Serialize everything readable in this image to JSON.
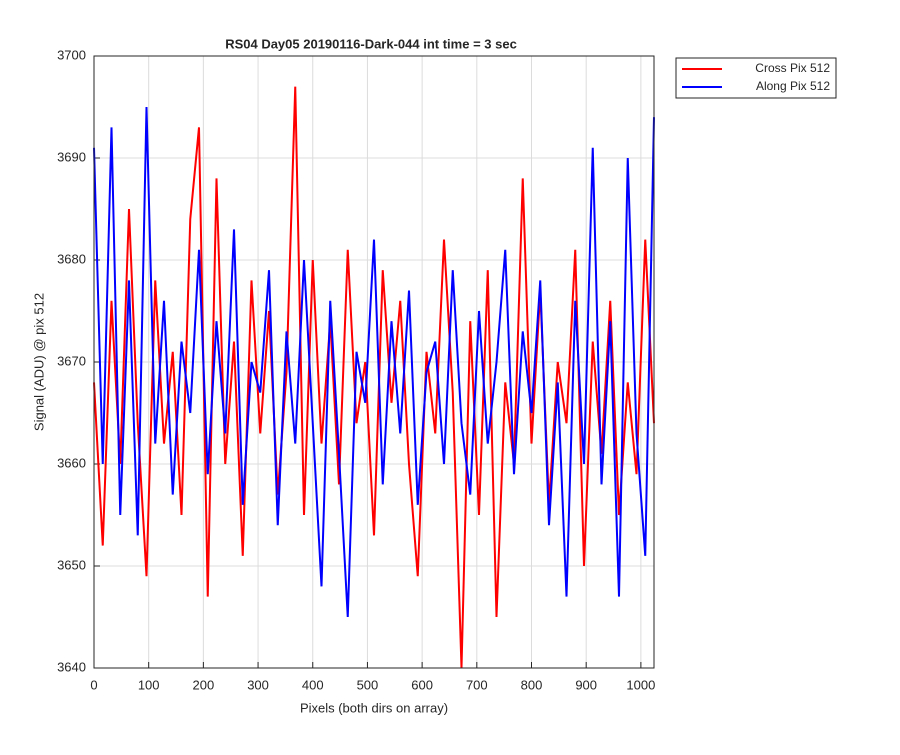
{
  "chart_data": {
    "type": "line",
    "title": "RS04 Day05 20190116-Dark-044 int time = 3 sec",
    "x_label": "Pixels (both dirs on array)",
    "y_label": "Signal (ADU) @ pix 512",
    "x": [
      0,
      16,
      32,
      48,
      64,
      80,
      96,
      112,
      128,
      144,
      160,
      176,
      192,
      208,
      224,
      240,
      256,
      272,
      288,
      304,
      320,
      336,
      352,
      368,
      384,
      400,
      416,
      432,
      448,
      464,
      480,
      496,
      512,
      528,
      544,
      560,
      576,
      592,
      608,
      624,
      640,
      656,
      672,
      688,
      704,
      720,
      736,
      752,
      768,
      784,
      800,
      816,
      832,
      848,
      864,
      880,
      896,
      912,
      928,
      944,
      960,
      976,
      992,
      1008,
      1024
    ],
    "series": [
      {
        "name": "Cross Pix 512",
        "color": "#ff0000",
        "values": [
          3668,
          3652,
          3676,
          3660,
          3685,
          3664,
          3649,
          3678,
          3662,
          3671,
          3655,
          3684,
          3693,
          3647,
          3688,
          3660,
          3672,
          3651,
          3678,
          3663,
          3675,
          3657,
          3669,
          3697,
          3655,
          3680,
          3662,
          3674,
          3658,
          3681,
          3664,
          3670,
          3653,
          3679,
          3666,
          3676,
          3660,
          3649,
          3671,
          3663,
          3682,
          3667,
          3640,
          3674,
          3655,
          3679,
          3645,
          3668,
          3660,
          3688,
          3662,
          3677,
          3656,
          3670,
          3664,
          3681,
          3650,
          3672,
          3661,
          3676,
          3655,
          3668,
          3659,
          3682,
          3664
        ]
      },
      {
        "name": "Along Pix 512",
        "color": "#0000ff",
        "values": [
          3691,
          3660,
          3693,
          3655,
          3678,
          3653,
          3695,
          3662,
          3676,
          3657,
          3672,
          3665,
          3681,
          3659,
          3674,
          3663,
          3683,
          3656,
          3670,
          3667,
          3679,
          3654,
          3673,
          3662,
          3680,
          3664,
          3648,
          3676,
          3661,
          3645,
          3671,
          3666,
          3682,
          3658,
          3674,
          3663,
          3677,
          3656,
          3669,
          3672,
          3660,
          3679,
          3664,
          3657,
          3675,
          3662,
          3670,
          3681,
          3659,
          3673,
          3665,
          3678,
          3654,
          3668,
          3647,
          3676,
          3660,
          3691,
          3658,
          3674,
          3647,
          3690,
          3663,
          3651,
          3694
        ]
      }
    ],
    "xlim": [
      0,
      1024
    ],
    "xticks": [
      0,
      100,
      200,
      300,
      400,
      500,
      600,
      700,
      800,
      900,
      1000
    ],
    "ylim": [
      3640,
      3700
    ],
    "yticks": [
      3640,
      3650,
      3660,
      3670,
      3680,
      3690,
      3700
    ],
    "grid": true,
    "legend": "outside-top-right"
  }
}
